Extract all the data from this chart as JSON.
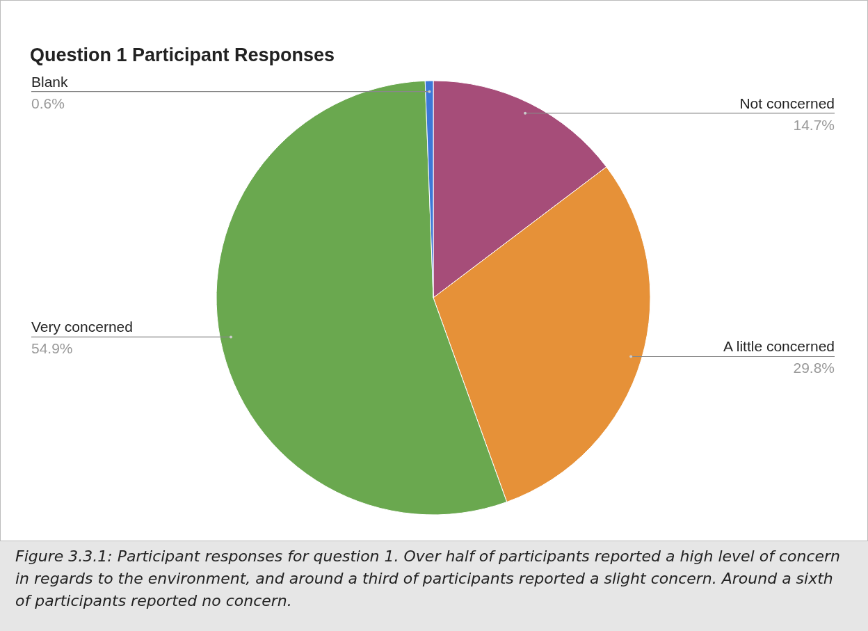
{
  "chart_data": {
    "type": "pie",
    "title": "Question 1 Participant Responses",
    "categories": [
      "Not concerned",
      "A little concerned",
      "Very concerned",
      "Blank"
    ],
    "values": [
      14.7,
      29.8,
      54.9,
      0.6
    ],
    "value_labels": [
      "14.7%",
      "29.8%",
      "54.9%",
      "0.6%"
    ],
    "colors": [
      "#a64d79",
      "#e69138",
      "#6aa84f",
      "#3c78d8"
    ],
    "legend": false,
    "annotations": [
      "Figure 3.3.1: Participant responses for question 1. Over half of participants reported a high level of concern in regards to the environment, and around a third of participants reported a slight concern. Around a sixth of participants reported no concern."
    ]
  }
}
